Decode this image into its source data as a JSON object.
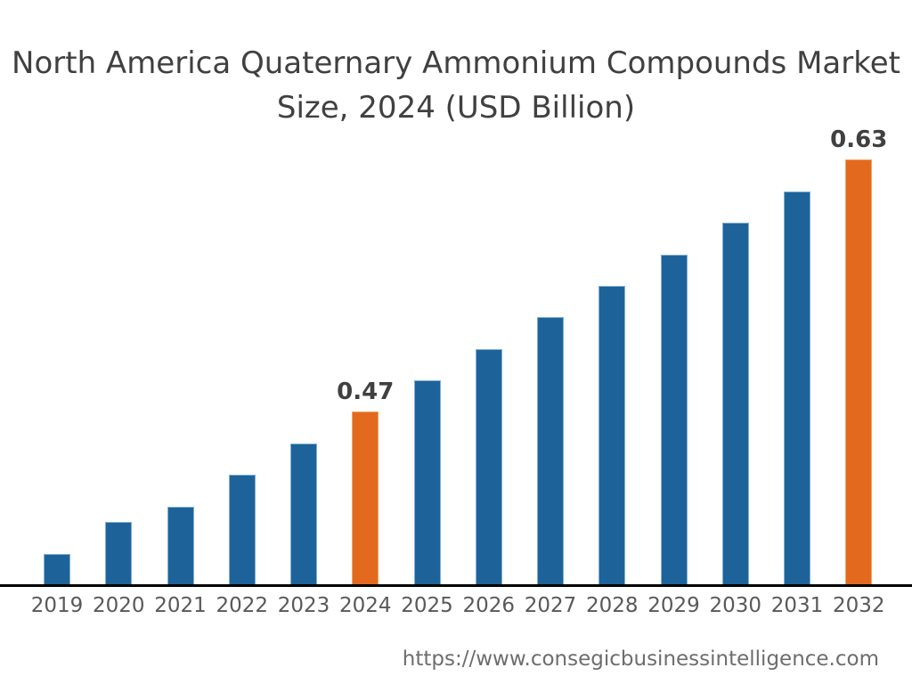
{
  "title": {
    "line1": "North America Quaternary Ammonium Compounds Market",
    "line2": "Size, 2024 (USD Billion)"
  },
  "footer": {
    "url": "https://www.consegicbusinessintelligence.com"
  },
  "colors": {
    "background": "#FFFFFF",
    "bar_default": "#1D6399",
    "bar_default_edge": "#7FB0D4",
    "bar_highlight": "#E3691F",
    "bar_highlight_edge": "#F0A466",
    "title_text": "#404040",
    "axis_line": "#000000",
    "tick_label": "#58595B",
    "data_label": "#404040",
    "footer_text": "#6D6D6D"
  },
  "chart_data": {
    "type": "bar",
    "title": "North America Quaternary Ammonium Compounds Market Size, 2024 (USD Billion)",
    "xlabel": "",
    "ylabel": "",
    "unit": "USD Billion",
    "categories": [
      "2019",
      "2020",
      "2021",
      "2022",
      "2023",
      "2024",
      "2025",
      "2026",
      "2027",
      "2028",
      "2029",
      "2030",
      "2031",
      "2032"
    ],
    "values": [
      0.38,
      0.4,
      0.41,
      0.43,
      0.45,
      0.47,
      0.49,
      0.51,
      0.53,
      0.55,
      0.57,
      0.59,
      0.61,
      0.63
    ],
    "highlighted_categories": [
      "2024",
      "2032"
    ],
    "annotations": [
      {
        "category": "2024",
        "text": "0.47"
      },
      {
        "category": "2032",
        "text": "0.63"
      }
    ],
    "ylim": [
      0.36,
      0.65
    ],
    "grid": false,
    "legend": false,
    "y_axis_shown": false
  }
}
